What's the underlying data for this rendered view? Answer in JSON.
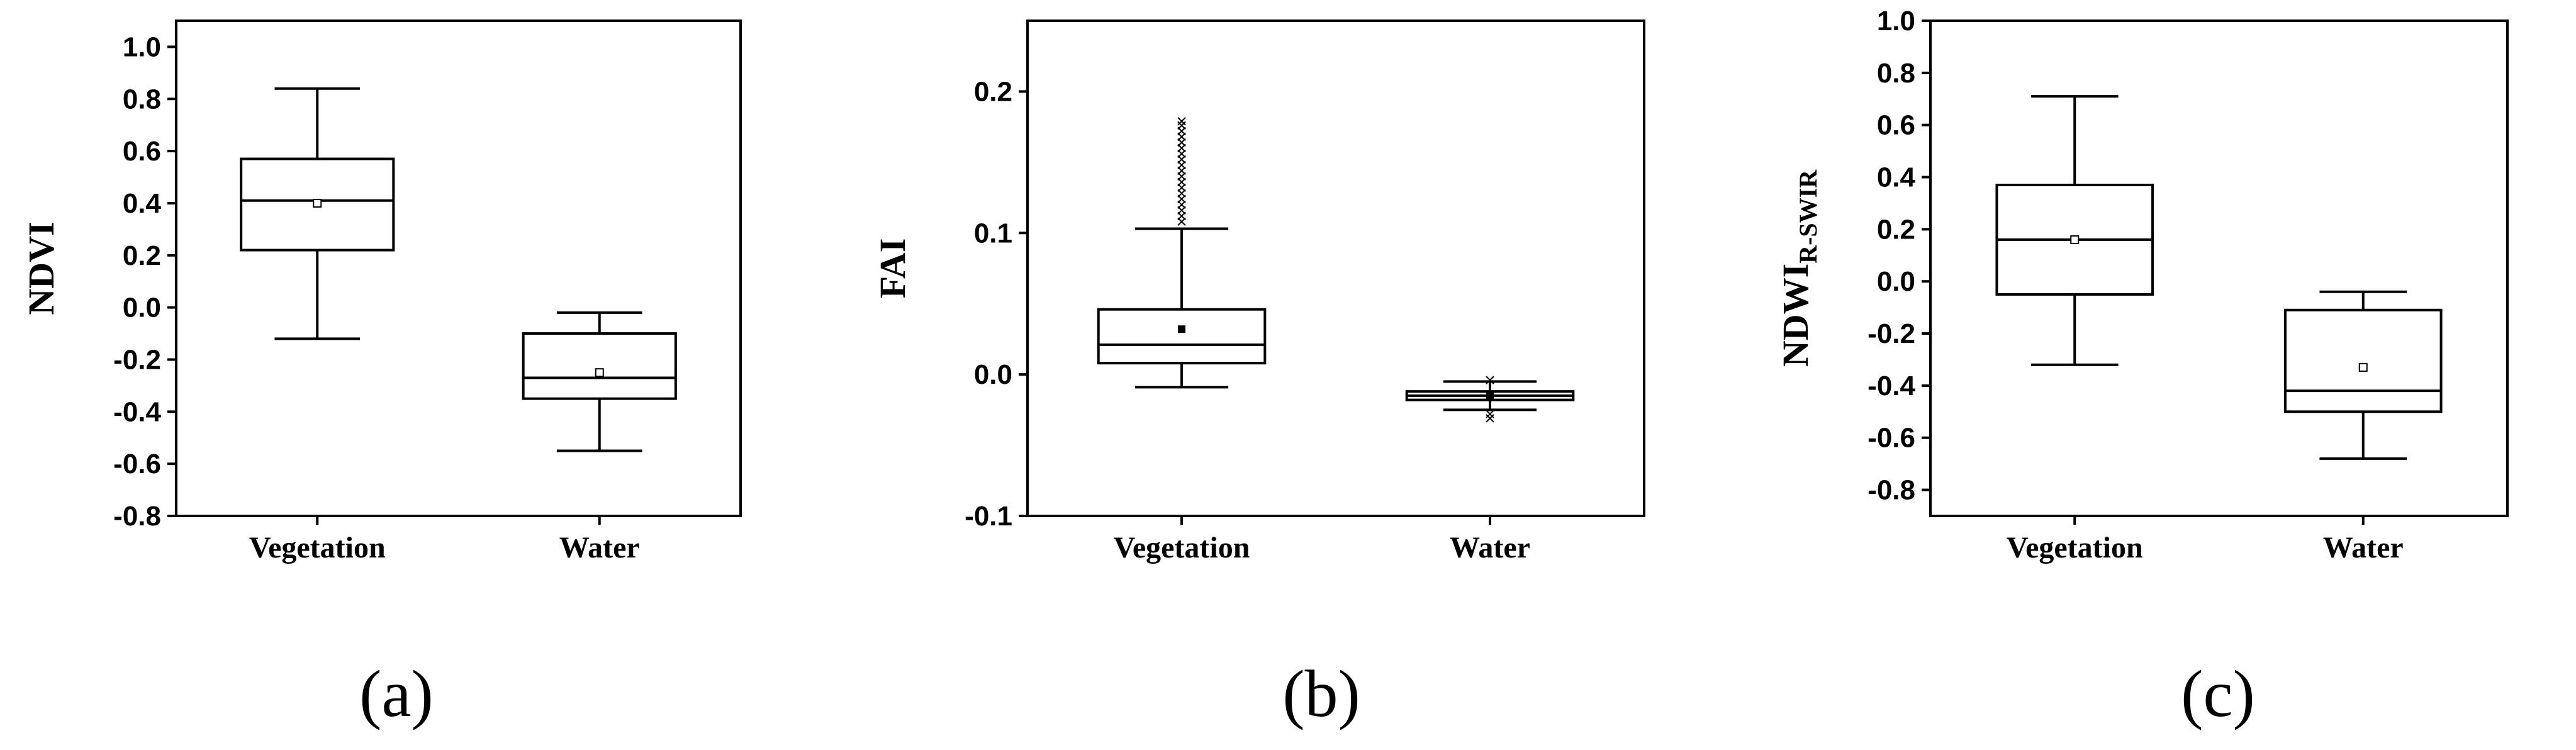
{
  "chart_data": [
    {
      "type": "box",
      "panel_label": "(a)",
      "ylabel": "NDVI",
      "ylabel_sub": "",
      "ylim": [
        -0.8,
        1.1
      ],
      "yticks": [
        -0.8,
        -0.6,
        -0.4,
        -0.2,
        0.0,
        0.2,
        0.4,
        0.6,
        0.8,
        1.0
      ],
      "ytick_labels": [
        "-0.8",
        "-0.6",
        "-0.4",
        "-0.2",
        "0.0",
        "0.2",
        "0.4",
        "0.6",
        "0.8",
        "1.0"
      ],
      "categories": [
        "Vegetation",
        "Water"
      ],
      "boxes": [
        {
          "whisker_low": -0.12,
          "q1": 0.22,
          "median": 0.41,
          "q3": 0.57,
          "whisker_high": 0.84,
          "mean": 0.4,
          "mean_marker": "hollow-square",
          "outliers": []
        },
        {
          "whisker_low": -0.55,
          "q1": -0.35,
          "median": -0.27,
          "q3": -0.1,
          "whisker_high": -0.02,
          "mean": -0.25,
          "mean_marker": "hollow-square",
          "outliers": []
        }
      ]
    },
    {
      "type": "box",
      "panel_label": "(b)",
      "ylabel": "FAI",
      "ylabel_sub": "",
      "ylim": [
        -0.1,
        0.25
      ],
      "yticks": [
        -0.1,
        0.0,
        0.1,
        0.2
      ],
      "ytick_labels": [
        "-0.1",
        "0.0",
        "0.1",
        "0.2"
      ],
      "categories": [
        "Vegetation",
        "Water"
      ],
      "boxes": [
        {
          "whisker_low": -0.009,
          "q1": 0.008,
          "median": 0.021,
          "q3": 0.046,
          "whisker_high": 0.103,
          "mean": 0.032,
          "mean_marker": "filled-square",
          "outliers": [
            0.108,
            0.112,
            0.116,
            0.12,
            0.124,
            0.128,
            0.132,
            0.136,
            0.14,
            0.144,
            0.148,
            0.152,
            0.156,
            0.16,
            0.164,
            0.168,
            0.172,
            0.176,
            0.179
          ]
        },
        {
          "whisker_low": -0.025,
          "q1": -0.018,
          "median": -0.015,
          "q3": -0.012,
          "whisker_high": -0.005,
          "mean": -0.015,
          "mean_marker": "filled-square",
          "outliers": [
            -0.028,
            -0.031,
            -0.004
          ]
        }
      ]
    },
    {
      "type": "box",
      "panel_label": "(c)",
      "ylabel": "NDWI",
      "ylabel_sub": "R-SWIR",
      "ylim": [
        -0.9,
        1.0
      ],
      "yticks": [
        -0.8,
        -0.6,
        -0.4,
        -0.2,
        0.0,
        0.2,
        0.4,
        0.6,
        0.8,
        1.0
      ],
      "ytick_labels": [
        "-0.8",
        "-0.6",
        "-0.4",
        "-0.2",
        "0.0",
        "0.2",
        "0.4",
        "0.6",
        "0.8",
        "1.0"
      ],
      "categories": [
        "Vegetation",
        "Water"
      ],
      "boxes": [
        {
          "whisker_low": -0.32,
          "q1": -0.05,
          "median": 0.16,
          "q3": 0.37,
          "whisker_high": 0.71,
          "mean": 0.16,
          "mean_marker": "hollow-square",
          "outliers": []
        },
        {
          "whisker_low": -0.68,
          "q1": -0.5,
          "median": -0.42,
          "q3": -0.11,
          "whisker_high": -0.04,
          "mean": -0.33,
          "mean_marker": "hollow-square",
          "outliers": []
        }
      ]
    }
  ]
}
